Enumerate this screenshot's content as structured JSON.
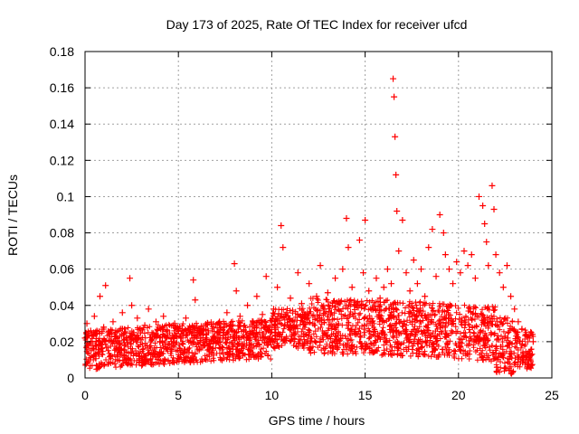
{
  "chart_data": {
    "type": "scatter",
    "title": "Day 173 of 2025, Rate Of TEC Index for receiver ufcd",
    "xlabel": "GPS time / hours",
    "ylabel": "ROTI / TECUs",
    "xlim": [
      0,
      25
    ],
    "ylim": [
      0,
      0.18
    ],
    "x_ticks": [
      0,
      5,
      10,
      15,
      20,
      25
    ],
    "x_tick_labels": [
      "0",
      "5",
      "10",
      "15",
      "20",
      "25"
    ],
    "y_ticks": [
      0,
      0.02,
      0.04,
      0.06,
      0.08,
      0.1,
      0.12,
      0.14,
      0.16,
      0.18
    ],
    "y_tick_labels": [
      "0",
      "0.02",
      "0.04",
      "0.06",
      "0.08",
      "0.1",
      "0.12",
      "0.14",
      "0.16",
      "0.18"
    ],
    "grid": true,
    "marker": "+",
    "marker_color": "#ff0000",
    "series": [
      {
        "name": "ROTI",
        "x": [
          0.0,
          0.1,
          0.2,
          0.3,
          0.5,
          0.6,
          0.8,
          1.0,
          1.1,
          1.3,
          1.5,
          1.7,
          1.9,
          2.0,
          2.2,
          2.4,
          2.5,
          2.6,
          2.8,
          3.0,
          3.2,
          3.4,
          3.6,
          3.8,
          4.0,
          4.2,
          4.4,
          4.6,
          4.8,
          5.0,
          5.2,
          5.4,
          5.6,
          5.8,
          5.9,
          6.0,
          6.2,
          6.4,
          6.6,
          6.8,
          7.0,
          7.2,
          7.4,
          7.6,
          7.8,
          8.0,
          8.1,
          8.3,
          8.5,
          8.7,
          9.0,
          9.2,
          9.5,
          9.7,
          9.9,
          10.1,
          10.3,
          10.5,
          10.6,
          10.8,
          11.0,
          11.2,
          11.4,
          11.6,
          11.8,
          12.0,
          12.2,
          12.4,
          12.6,
          12.8,
          13.0,
          13.2,
          13.4,
          13.6,
          13.8,
          14.0,
          14.1,
          14.3,
          14.5,
          14.7,
          14.9,
          15.0,
          15.2,
          15.4,
          15.6,
          15.8,
          16.0,
          16.2,
          16.4,
          16.5,
          16.55,
          16.6,
          16.65,
          16.7,
          16.8,
          17.0,
          17.2,
          17.4,
          17.6,
          17.8,
          18.0,
          18.2,
          18.4,
          18.6,
          18.8,
          19.0,
          19.2,
          19.3,
          19.5,
          19.7,
          19.9,
          20.1,
          20.3,
          20.5,
          20.7,
          20.9,
          21.1,
          21.3,
          21.4,
          21.5,
          21.6,
          21.8,
          21.9,
          22.0,
          22.2,
          22.4,
          22.6,
          22.8,
          23.0,
          23.2,
          23.4,
          23.6,
          23.8,
          24.0
        ],
        "y": [
          0.022,
          0.03,
          0.018,
          0.026,
          0.034,
          0.02,
          0.045,
          0.028,
          0.051,
          0.024,
          0.031,
          0.019,
          0.027,
          0.036,
          0.022,
          0.055,
          0.04,
          0.025,
          0.033,
          0.021,
          0.029,
          0.038,
          0.024,
          0.031,
          0.02,
          0.034,
          0.026,
          0.022,
          0.03,
          0.027,
          0.019,
          0.033,
          0.025,
          0.054,
          0.043,
          0.028,
          0.022,
          0.018,
          0.026,
          0.015,
          0.02,
          0.031,
          0.025,
          0.036,
          0.029,
          0.063,
          0.048,
          0.034,
          0.026,
          0.04,
          0.031,
          0.045,
          0.035,
          0.056,
          0.028,
          0.038,
          0.05,
          0.084,
          0.072,
          0.036,
          0.044,
          0.031,
          0.058,
          0.041,
          0.035,
          0.052,
          0.03,
          0.045,
          0.062,
          0.038,
          0.047,
          0.036,
          0.055,
          0.042,
          0.06,
          0.088,
          0.072,
          0.05,
          0.04,
          0.076,
          0.058,
          0.087,
          0.048,
          0.039,
          0.055,
          0.044,
          0.05,
          0.06,
          0.052,
          0.165,
          0.155,
          0.133,
          0.112,
          0.092,
          0.07,
          0.087,
          0.058,
          0.048,
          0.065,
          0.052,
          0.06,
          0.045,
          0.072,
          0.082,
          0.056,
          0.09,
          0.08,
          0.068,
          0.06,
          0.052,
          0.064,
          0.058,
          0.07,
          0.062,
          0.068,
          0.055,
          0.1,
          0.095,
          0.085,
          0.075,
          0.062,
          0.106,
          0.093,
          0.068,
          0.058,
          0.05,
          0.062,
          0.045,
          0.038,
          0.031,
          0.027,
          0.024,
          0.022,
          0.02
        ]
      }
    ]
  }
}
